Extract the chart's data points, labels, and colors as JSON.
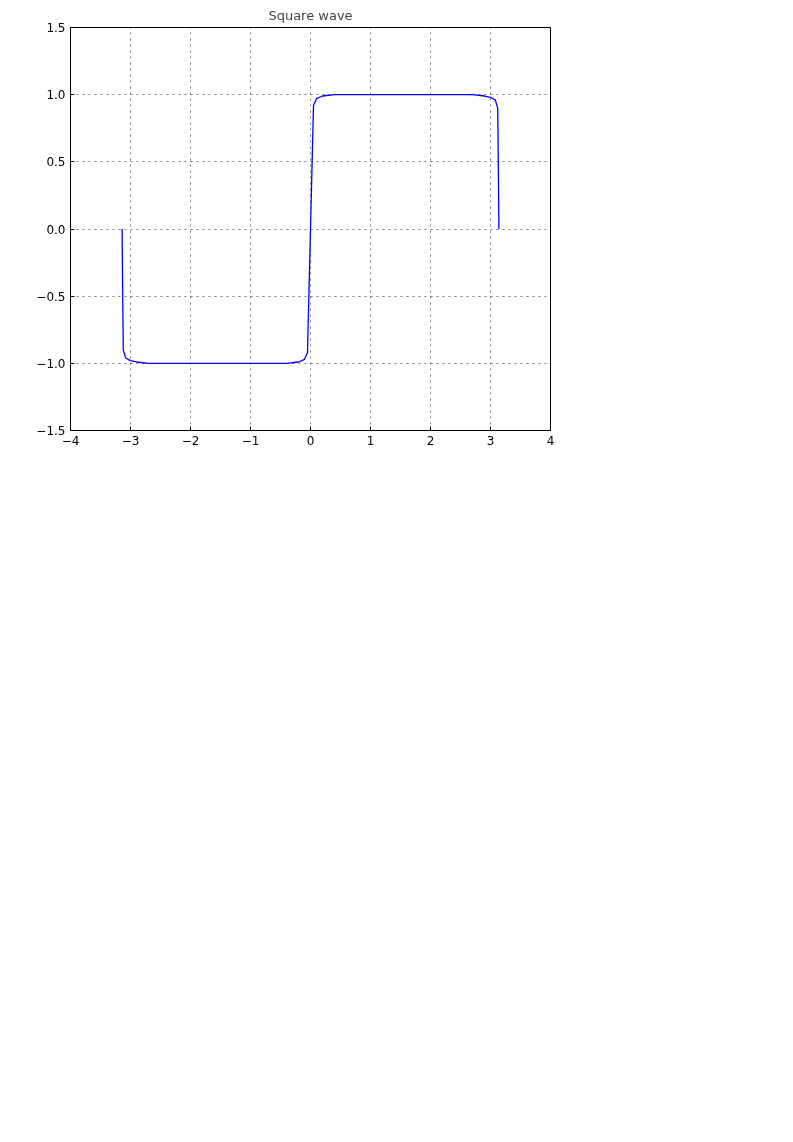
{
  "chart_data": {
    "type": "line",
    "title": "Square wave",
    "x": [
      -3.14,
      -3.13,
      -3.12,
      -3.08,
      -3.0,
      -2.9,
      -2.7,
      -2.4,
      -2.0,
      -1.57,
      -1.2,
      -0.8,
      -0.4,
      -0.2,
      -0.1,
      -0.05,
      0,
      0.05,
      0.1,
      0.2,
      0.4,
      0.8,
      1.2,
      1.57,
      2.0,
      2.4,
      2.7,
      2.9,
      3.0,
      3.08,
      3.12,
      3.13,
      3.14
    ],
    "series": [
      {
        "color": "#0000ff",
        "values": [
          0,
          -0.5,
          -0.9,
          -0.96,
          -0.98,
          -0.99,
          -1.0,
          -1.0,
          -1.0,
          -1.0,
          -1.0,
          -1.0,
          -1.0,
          -0.99,
          -0.97,
          -0.92,
          0,
          0.92,
          0.97,
          0.99,
          1.0,
          1.0,
          1.0,
          1.0,
          1.0,
          1.0,
          1.0,
          0.99,
          0.98,
          0.96,
          0.9,
          0.5,
          0
        ]
      }
    ],
    "xlim": [
      -4,
      4
    ],
    "ylim": [
      -1.5,
      1.5
    ],
    "xticks": [
      {
        "value": -4,
        "label": "−4"
      },
      {
        "value": -3,
        "label": "−3"
      },
      {
        "value": -2,
        "label": "−2"
      },
      {
        "value": -1,
        "label": "−1"
      },
      0,
      1,
      2,
      3,
      4
    ],
    "yticks": [
      {
        "value": -1.5,
        "label": "−1.5"
      },
      {
        "value": -1.0,
        "label": "−1.0"
      },
      {
        "value": -0.5,
        "label": "−0.5"
      },
      {
        "value": 0,
        "label": "0.0"
      },
      {
        "value": 0.5,
        "label": "0.5"
      },
      {
        "value": 1.0,
        "label": "1.0"
      },
      {
        "value": 1.5,
        "label": "1.5"
      }
    ],
    "grid": true,
    "line_style": "solid",
    "marker": "none"
  }
}
